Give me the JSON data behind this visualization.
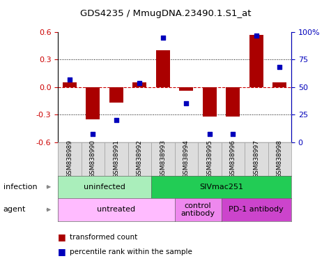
{
  "title": "GDS4235 / MmugDNA.23490.1.S1_at",
  "samples": [
    "GSM838989",
    "GSM838990",
    "GSM838991",
    "GSM838992",
    "GSM838993",
    "GSM838994",
    "GSM838995",
    "GSM838996",
    "GSM838997",
    "GSM838998"
  ],
  "transformed_count": [
    0.05,
    -0.35,
    -0.17,
    0.05,
    0.4,
    -0.04,
    -0.32,
    -0.32,
    0.57,
    0.05
  ],
  "percentile_rank": [
    57,
    7,
    20,
    54,
    95,
    35,
    7,
    7,
    97,
    68
  ],
  "ylim": [
    -0.6,
    0.6
  ],
  "yticks_left": [
    -0.6,
    -0.3,
    0.0,
    0.3,
    0.6
  ],
  "yticks_right": [
    0,
    25,
    50,
    75,
    100
  ],
  "ytick_right_labels": [
    "0",
    "25",
    "50",
    "75",
    "100%"
  ],
  "bar_color": "#aa0000",
  "dot_color": "#0000bb",
  "zero_line_color": "#cc0000",
  "grid_color": "#000000",
  "infection_row": [
    {
      "label": "uninfected",
      "span": [
        0,
        4
      ],
      "color": "#aaeebb"
    },
    {
      "label": "SIVmac251",
      "span": [
        4,
        10
      ],
      "color": "#22cc55"
    }
  ],
  "agent_row": [
    {
      "label": "untreated",
      "span": [
        0,
        5
      ],
      "color": "#ffbbff"
    },
    {
      "label": "control\nantibody",
      "span": [
        5,
        7
      ],
      "color": "#ee88ee"
    },
    {
      "label": "PD-1 antibody",
      "span": [
        7,
        10
      ],
      "color": "#cc44cc"
    }
  ],
  "legend_items": [
    {
      "label": "transformed count",
      "color": "#aa0000"
    },
    {
      "label": "percentile rank within the sample",
      "color": "#0000bb"
    }
  ],
  "background_color": "#ffffff",
  "plot_bg_color": "#ffffff",
  "n_samples": 10
}
